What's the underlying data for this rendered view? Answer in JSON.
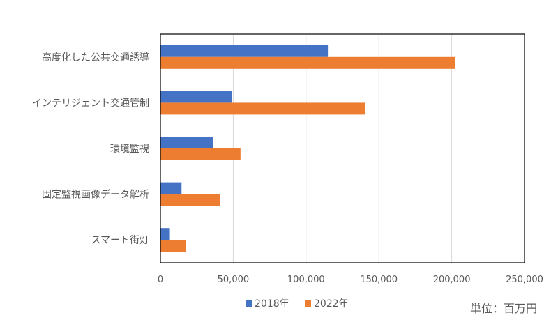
{
  "chart_data": {
    "type": "bar",
    "orientation": "horizontal",
    "categories": [
      "高度化した公共交通誘導",
      "インテリジェント交通管制",
      "環境監視",
      "固定監視画像データ解析",
      "スマート街灯"
    ],
    "series": [
      {
        "name": "2018年",
        "color": "#4472C4",
        "values": [
          115000,
          49000,
          36000,
          14500,
          6500
        ]
      },
      {
        "name": "2022年",
        "color": "#ED7D31",
        "values": [
          202500,
          140500,
          55000,
          41000,
          17500
        ]
      }
    ],
    "xlim": [
      0,
      250000
    ],
    "ticks": [
      0,
      50000,
      100000,
      150000,
      200000,
      250000
    ],
    "tick_labels": [
      "0",
      "50,000",
      "100,000",
      "150,000",
      "200,000",
      "250,000"
    ],
    "grid": true,
    "legend_position": "bottom"
  },
  "unit_label": "単位：百万円"
}
